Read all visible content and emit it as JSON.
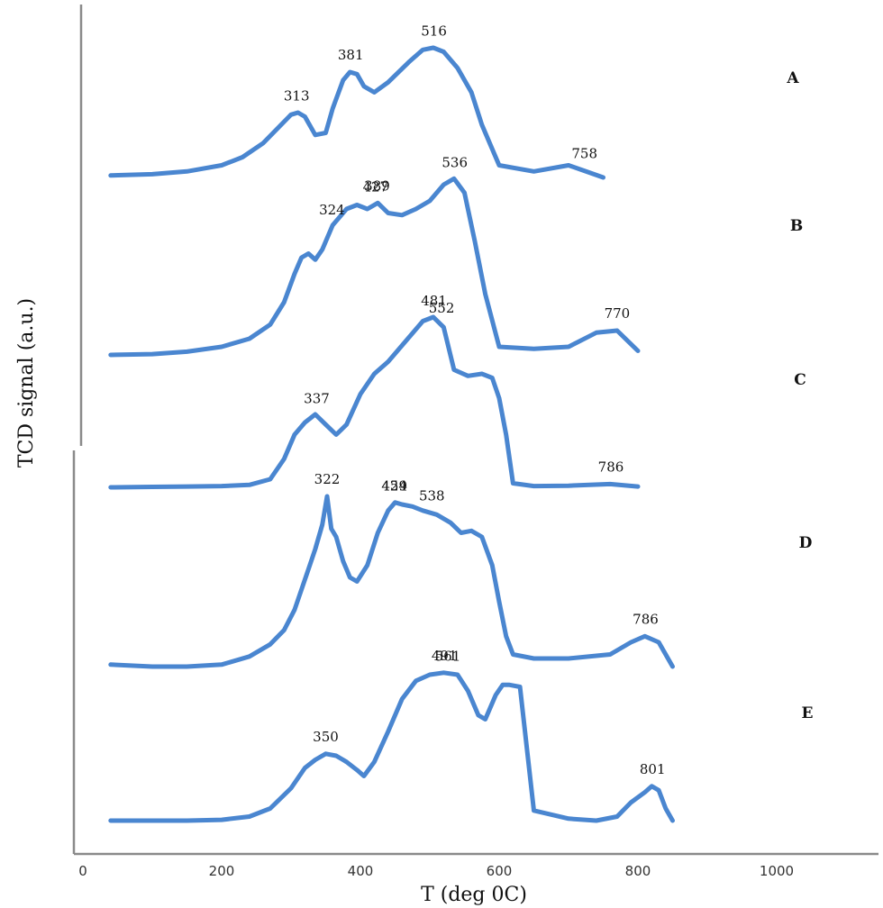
{
  "chart_data": {
    "type": "line",
    "xlabel": "T (deg 0C)",
    "ylabel": "TCD signal (a.u.)",
    "xlim": [
      0,
      1150
    ],
    "xticks": [
      0,
      200,
      400,
      600,
      800,
      1000
    ],
    "line_color": "#4a86d0",
    "series": [
      {
        "name": "A",
        "x": [
          40,
          100,
          150,
          200,
          230,
          260,
          280,
          300,
          310,
          320,
          335,
          350,
          360,
          375,
          385,
          395,
          405,
          420,
          440,
          470,
          490,
          505,
          520,
          540,
          560,
          575,
          600,
          650,
          700,
          720,
          750
        ],
        "y": [
          0.05,
          0.08,
          0.15,
          0.3,
          0.5,
          0.85,
          1.2,
          1.55,
          1.6,
          1.5,
          1.05,
          1.1,
          1.7,
          2.4,
          2.6,
          2.55,
          2.25,
          2.1,
          2.35,
          2.85,
          3.15,
          3.2,
          3.1,
          2.7,
          2.1,
          1.3,
          0.3,
          0.15,
          0.3,
          0.18,
          0.0
        ],
        "peaks": [
          313,
          381,
          516,
          758
        ]
      },
      {
        "name": "B",
        "x": [
          40,
          100,
          150,
          200,
          240,
          270,
          290,
          305,
          315,
          325,
          335,
          345,
          360,
          380,
          395,
          410,
          425,
          440,
          460,
          480,
          500,
          520,
          535,
          550,
          565,
          580,
          600,
          650,
          700,
          740,
          770,
          800
        ],
        "y": [
          0.0,
          0.02,
          0.08,
          0.2,
          0.4,
          0.75,
          1.3,
          2.0,
          2.4,
          2.5,
          2.35,
          2.6,
          3.2,
          3.6,
          3.7,
          3.6,
          3.75,
          3.5,
          3.45,
          3.6,
          3.8,
          4.2,
          4.35,
          4.0,
          2.8,
          1.5,
          0.2,
          0.15,
          0.2,
          0.55,
          0.6,
          0.1
        ],
        "peaks": [
          324,
          389,
          427,
          536,
          770
        ]
      },
      {
        "name": "C",
        "x": [
          40,
          100,
          150,
          200,
          240,
          270,
          290,
          305,
          320,
          335,
          350,
          365,
          380,
          400,
          420,
          440,
          460,
          480,
          490,
          505,
          520,
          535,
          555,
          575,
          590,
          600,
          610,
          620,
          650,
          700,
          760,
          800
        ],
        "y": [
          0.0,
          0.01,
          0.02,
          0.03,
          0.06,
          0.2,
          0.7,
          1.3,
          1.6,
          1.8,
          1.55,
          1.3,
          1.55,
          2.3,
          2.8,
          3.1,
          3.5,
          3.9,
          4.1,
          4.2,
          3.95,
          2.9,
          2.75,
          2.8,
          2.7,
          2.2,
          1.3,
          0.1,
          0.03,
          0.04,
          0.08,
          0.02
        ],
        "peaks": [
          337,
          481,
          552,
          786
        ]
      },
      {
        "name": "D",
        "x": [
          40,
          100,
          150,
          200,
          240,
          270,
          290,
          305,
          315,
          325,
          335,
          345,
          352,
          358,
          365,
          375,
          385,
          395,
          410,
          425,
          440,
          450,
          460,
          475,
          490,
          510,
          530,
          545,
          560,
          575,
          590,
          600,
          610,
          620,
          650,
          700,
          760,
          790,
          810,
          830,
          850
        ],
        "y": [
          0.05,
          0.0,
          0.0,
          0.05,
          0.25,
          0.55,
          0.9,
          1.4,
          1.9,
          2.4,
          2.9,
          3.5,
          4.2,
          3.4,
          3.2,
          2.6,
          2.2,
          2.1,
          2.5,
          3.3,
          3.85,
          4.05,
          4.0,
          3.95,
          3.85,
          3.75,
          3.55,
          3.3,
          3.35,
          3.2,
          2.5,
          1.6,
          0.75,
          0.3,
          0.2,
          0.2,
          0.3,
          0.6,
          0.75,
          0.6,
          0.0
        ],
        "peaks": [
          322,
          429,
          454,
          538,
          786
        ]
      },
      {
        "name": "E",
        "x": [
          40,
          100,
          150,
          200,
          240,
          270,
          300,
          320,
          335,
          350,
          365,
          380,
          395,
          405,
          420,
          440,
          460,
          480,
          500,
          520,
          540,
          555,
          570,
          580,
          595,
          605,
          615,
          630,
          650,
          700,
          740,
          770,
          790,
          810,
          820,
          830,
          840,
          850
        ],
        "y": [
          0.0,
          0.0,
          0.0,
          0.02,
          0.1,
          0.3,
          0.8,
          1.3,
          1.5,
          1.65,
          1.6,
          1.45,
          1.25,
          1.1,
          1.45,
          2.2,
          3.0,
          3.45,
          3.6,
          3.65,
          3.6,
          3.2,
          2.6,
          2.5,
          3.1,
          3.35,
          3.35,
          3.3,
          0.25,
          0.05,
          0.0,
          0.1,
          0.45,
          0.7,
          0.85,
          0.75,
          0.3,
          0.0
        ],
        "peaks": [
          350,
          491,
          561,
          801
        ]
      }
    ],
    "peak_labels": [
      {
        "series": "A",
        "text": "313"
      },
      {
        "series": "A",
        "text": "381"
      },
      {
        "series": "A",
        "text": "516"
      },
      {
        "series": "A",
        "text": "758"
      },
      {
        "series": "B",
        "text": "324"
      },
      {
        "series": "B",
        "text": "389"
      },
      {
        "series": "B",
        "text": "427"
      },
      {
        "series": "B",
        "text": "536"
      },
      {
        "series": "B",
        "text": "770"
      },
      {
        "series": "C",
        "text": "337"
      },
      {
        "series": "C",
        "text": "481"
      },
      {
        "series": "C",
        "text": "552"
      },
      {
        "series": "C",
        "text": "786"
      },
      {
        "series": "D",
        "text": "322"
      },
      {
        "series": "D",
        "text": "429"
      },
      {
        "series": "D",
        "text": "454"
      },
      {
        "series": "D",
        "text": "538"
      },
      {
        "series": "D",
        "text": "786"
      },
      {
        "series": "E",
        "text": "350"
      },
      {
        "series": "E",
        "text": "491"
      },
      {
        "series": "E",
        "text": "561"
      },
      {
        "series": "E",
        "text": "801"
      }
    ]
  }
}
